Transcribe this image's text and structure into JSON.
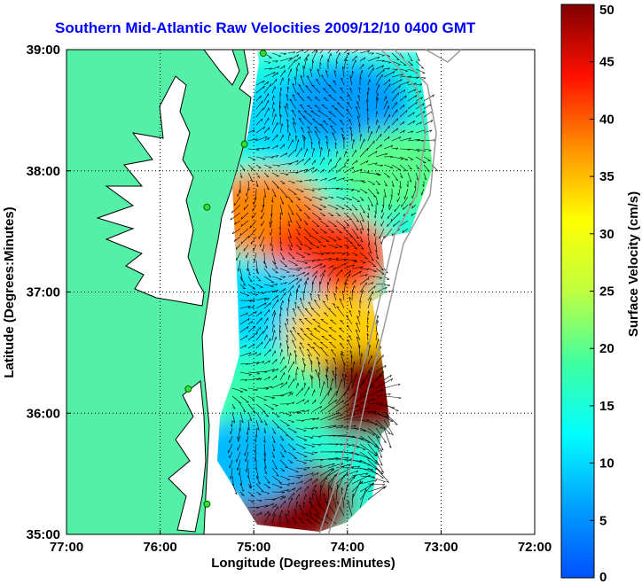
{
  "chart_data": {
    "type": "heatmap",
    "title": "Southern Mid-Atlantic Raw Velocities 2009/12/10 0400 GMT",
    "xlabel": "Longitude (Degrees:Minutes)",
    "ylabel": "Latitude (Degrees:Minutes)",
    "x_ticks": [
      "77:00",
      "76:00",
      "75:00",
      "74:00",
      "73:00",
      "72:00"
    ],
    "y_ticks": [
      "39:00",
      "38:00",
      "37:00",
      "36:00",
      "35:00"
    ],
    "xlim": [
      -77,
      -72
    ],
    "ylim": [
      35,
      39
    ],
    "grid": true,
    "colorbar": {
      "label": "Surface Velocity (cm/s)",
      "range": [
        0,
        50
      ],
      "ticks": [
        "0",
        "5",
        "10",
        "15",
        "20",
        "25",
        "30",
        "35",
        "40",
        "45",
        "50"
      ]
    },
    "regions": [
      {
        "lon": -74.6,
        "lat": 38.45,
        "speed": 10
      },
      {
        "lon": -74.0,
        "lat": 38.55,
        "speed": 6
      },
      {
        "lon": -73.45,
        "lat": 38.0,
        "speed": 20
      },
      {
        "lon": -74.9,
        "lat": 37.65,
        "speed": 38
      },
      {
        "lon": -74.2,
        "lat": 37.3,
        "speed": 42
      },
      {
        "lon": -74.9,
        "lat": 36.9,
        "speed": 10
      },
      {
        "lon": -74.0,
        "lat": 36.65,
        "speed": 34
      },
      {
        "lon": -73.8,
        "lat": 36.15,
        "speed": 50
      },
      {
        "lon": -74.8,
        "lat": 36.1,
        "speed": 18
      },
      {
        "lon": -74.6,
        "lat": 35.25,
        "speed": 50
      },
      {
        "lon": -75.1,
        "lat": 35.6,
        "speed": 8
      }
    ],
    "sites": [
      {
        "lon": -74.9,
        "lat": 38.97
      },
      {
        "lon": -75.1,
        "lat": 38.22
      },
      {
        "lon": -75.5,
        "lat": 37.7
      },
      {
        "lon": -75.7,
        "lat": 36.2
      },
      {
        "lon": -75.5,
        "lat": 35.25
      }
    ]
  }
}
